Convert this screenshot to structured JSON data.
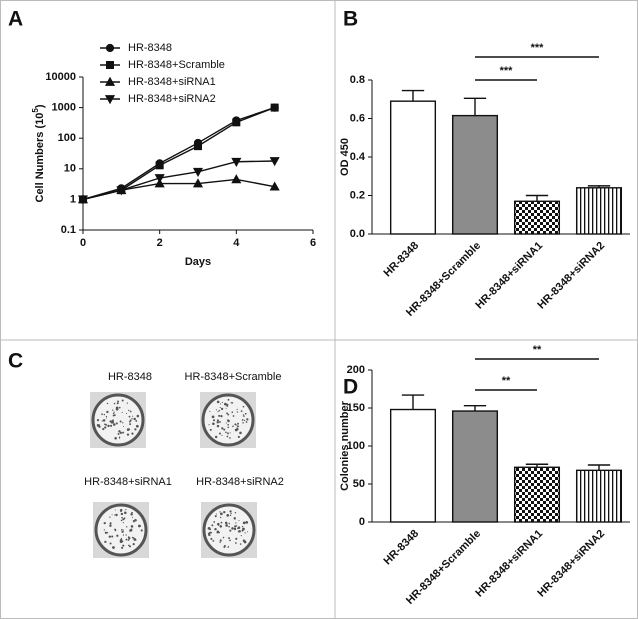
{
  "chart_data": [
    {
      "type": "line",
      "panel": "A",
      "x_label": "Days",
      "y_label": {
        "text": "Cell Numbers (10",
        "sup": "5",
        "tail": ")"
      },
      "log_y": true,
      "legend": "top-left",
      "x": [
        0,
        1,
        2,
        3,
        4,
        5
      ],
      "xlim": [
        0,
        6
      ],
      "xticks": [
        0,
        2,
        4,
        6
      ],
      "ylim": [
        0.1,
        10000
      ],
      "yticks": [
        0.1,
        1,
        10,
        100,
        1000,
        10000
      ],
      "series": [
        {
          "name": "HR-8348",
          "color": "#111111",
          "marker": "circle",
          "values": [
            1,
            2.3,
            15,
            70,
            380,
            1000
          ]
        },
        {
          "name": "HR-8348+Scramble",
          "color": "#111111",
          "marker": "square",
          "values": [
            1,
            2,
            13,
            55,
            330,
            1000
          ]
        },
        {
          "name": "HR-8348+siRNA1",
          "color": "#111111",
          "marker": "triangle-up",
          "values": [
            1,
            2,
            3.3,
            3.3,
            4.5,
            2.6
          ]
        },
        {
          "name": "HR-8348+siRNA2",
          "color": "#111111",
          "marker": "triangle-down",
          "values": [
            1,
            2,
            5,
            8,
            17,
            18
          ]
        }
      ]
    },
    {
      "type": "bar",
      "panel": "B",
      "y_label": "OD 450",
      "categories": [
        "HR-8348",
        "HR-8348+Scramble",
        "HR-8348+siRNA1",
        "HR-8348+siRNA2"
      ],
      "values": [
        0.69,
        0.615,
        0.17,
        0.24
      ],
      "errors": [
        0.055,
        0.09,
        0.03,
        0.01
      ],
      "fills": [
        "#ffffff",
        "#8c8c8c",
        "checkered",
        "vertical-lines"
      ],
      "ylim": [
        0,
        0.8
      ],
      "yticks": [
        {
          "value": 0,
          "label": "0.0"
        },
        0.2,
        0.4,
        0.6,
        0.8
      ],
      "annotations": [
        {
          "text": "***",
          "from": "HR-8348+Scramble",
          "to": "HR-8348+siRNA1"
        },
        {
          "text": "***",
          "from": "HR-8348+Scramble",
          "to": "HR-8348+siRNA2"
        }
      ]
    },
    {
      "type": "bar",
      "panel": "D",
      "y_label": "Colonies number",
      "categories": [
        "HR-8348",
        "HR-8348+Scramble",
        "HR-8348+siRNA1",
        "HR-8348+siRNA2"
      ],
      "values": [
        148,
        146,
        72,
        68
      ],
      "errors": [
        19,
        7,
        4,
        7
      ],
      "fills": [
        "#ffffff",
        "#8c8c8c",
        "checkered",
        "vertical-lines"
      ],
      "ylim": [
        0,
        200
      ],
      "yticks": [
        0,
        50,
        100,
        150,
        200
      ],
      "annotations": [
        {
          "text": "**",
          "from": "HR-8348+Scramble",
          "to": "HR-8348+siRNA1"
        },
        {
          "text": "**",
          "from": "HR-8348+Scramble",
          "to": "HR-8348+siRNA2"
        }
      ]
    }
  ],
  "colony_panel": {
    "panel": "C",
    "wells": [
      "HR-8348",
      "HR-8348+Scramble",
      "HR-8348+siRNA1",
      "HR-8348+siRNA2"
    ]
  }
}
